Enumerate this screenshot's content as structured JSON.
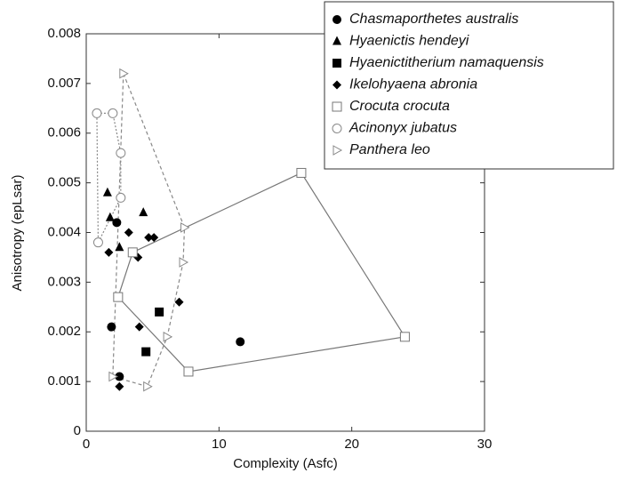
{
  "chart_data": {
    "type": "scatter",
    "x_label": "Complexity (Asfc)",
    "y_label": "Anisotropy (epLsar)",
    "xlim": [
      0,
      30
    ],
    "xticks": [
      0,
      10,
      20,
      30
    ],
    "ylim": [
      0,
      0.008
    ],
    "yticks": [
      0,
      0.001,
      0.002,
      0.003,
      0.004,
      0.005,
      0.006,
      0.007,
      0.008
    ],
    "legend_position": "upper right",
    "series": [
      {
        "name": "Chasmaporthetes australis",
        "color": "#000000",
        "marker": "circle",
        "x": [
          2.3,
          1.9,
          2.5,
          11.6
        ],
        "values": [
          0.0042,
          0.0021,
          0.0011,
          0.0018
        ]
      },
      {
        "name": "Hyaenictis hendeyi",
        "color": "#000000",
        "marker": "triangle",
        "x": [
          1.6,
          1.8,
          2.5,
          4.3
        ],
        "values": [
          0.0048,
          0.0043,
          0.0037,
          0.0044
        ]
      },
      {
        "name": "Hyaenictitherium namaquensis",
        "color": "#000000",
        "marker": "square",
        "x": [
          5.5,
          4.5
        ],
        "values": [
          0.0024,
          0.0016
        ]
      },
      {
        "name": "Ikelohyaena abronia",
        "color": "#000000",
        "marker": "diamond",
        "x": [
          1.7,
          3.2,
          3.9,
          4.7,
          5.1,
          7.0,
          4.0,
          2.5
        ],
        "values": [
          0.0036,
          0.004,
          0.0035,
          0.0039,
          0.0039,
          0.0026,
          0.0021,
          0.0009
        ]
      },
      {
        "name": "Crocuta crocuta",
        "color": "#777777",
        "marker": "open-square",
        "hull": "solid",
        "x": [
          3.5,
          16.2,
          24,
          7.7,
          2.4
        ],
        "values": [
          0.0036,
          0.0052,
          0.0019,
          0.0012,
          0.0027
        ]
      },
      {
        "name": "Acinonyx jubatus",
        "color": "#888888",
        "marker": "open-circle",
        "hull": "dotted",
        "x": [
          0.8,
          2.0,
          2.6,
          2.6,
          0.9
        ],
        "values": [
          0.0064,
          0.0064,
          0.0056,
          0.0047,
          0.0038
        ]
      },
      {
        "name": "Panthera leo",
        "color": "#888888",
        "marker": "open-triangle",
        "hull": "dashed",
        "x": [
          2.8,
          7.4,
          7.3,
          6.1,
          4.6,
          2.0
        ],
        "values": [
          0.0072,
          0.0041,
          0.0034,
          0.0019,
          0.0009,
          0.0011
        ]
      }
    ]
  }
}
